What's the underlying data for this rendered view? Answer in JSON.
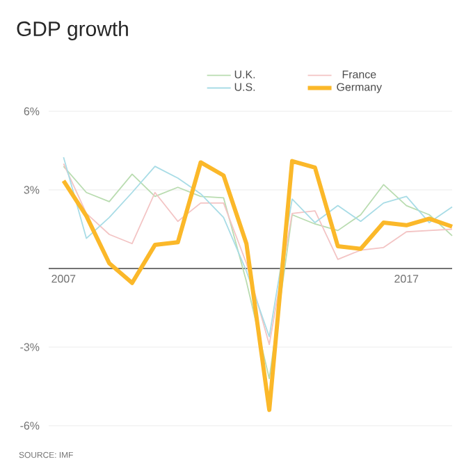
{
  "chart_data": {
    "type": "line",
    "title": "GDP growth",
    "categories": [
      "2007",
      null,
      null,
      null,
      null,
      null,
      null,
      null,
      null,
      null,
      null,
      null,
      null,
      null,
      null,
      "2017",
      null,
      null
    ],
    "series": [
      {
        "name": "U.K.",
        "color": "#b9dcb0",
        "values": [
          3.9,
          2.9,
          2.55,
          3.6,
          2.75,
          3.1,
          2.75,
          2.7,
          -0.5,
          -4.2,
          2.05,
          1.7,
          1.45,
          2.05,
          3.2,
          2.4,
          2.05,
          1.25
        ]
      },
      {
        "name": "France",
        "color": "#f3c4c4",
        "values": [
          4.0,
          2.1,
          1.3,
          0.95,
          2.9,
          1.8,
          2.5,
          2.5,
          0.2,
          -2.9,
          2.1,
          2.2,
          0.35,
          0.7,
          0.8,
          1.4,
          1.45,
          1.5
        ]
      },
      {
        "name": "U.S.",
        "color": "#a8dce6",
        "values": [
          4.25,
          1.15,
          1.95,
          2.9,
          3.9,
          3.45,
          2.85,
          1.95,
          -0.1,
          -2.6,
          2.65,
          1.75,
          2.4,
          1.8,
          2.5,
          2.75,
          1.75,
          2.35
        ]
      },
      {
        "name": "Germany",
        "color": "#fbb829",
        "values": [
          3.35,
          2.0,
          0.2,
          -0.55,
          0.9,
          1.0,
          4.05,
          3.55,
          0.95,
          -5.4,
          4.1,
          3.85,
          0.85,
          0.75,
          1.75,
          1.65,
          1.9,
          1.6
        ]
      }
    ],
    "ylim": [
      -6,
      6
    ],
    "yticks": [
      {
        "value": 6,
        "label": "6%"
      },
      {
        "value": 3,
        "label": "3%"
      },
      {
        "value": 0,
        "label": null
      },
      {
        "value": -3,
        "label": "-3%"
      },
      {
        "value": -6,
        "label": "-6%"
      }
    ],
    "grid": "y",
    "legend": "top",
    "line_style": "solid",
    "annotations": [
      "SOURCE: IMF"
    ]
  }
}
